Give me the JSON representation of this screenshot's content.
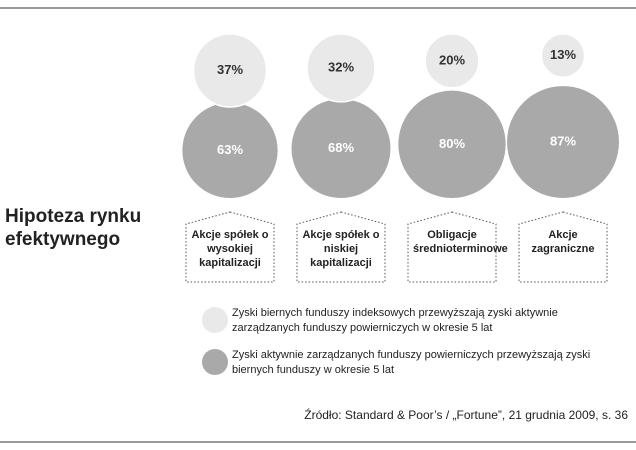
{
  "chart_data": {
    "type": "bubble",
    "title": "Hipoteza rynku efektywnego",
    "categories": [
      "Akcje spółek o wysokiej kapitalizacji",
      "Akcje spółek o niskiej kapitalizacji",
      "Obligacje średnioterminowe",
      "Akcje zagraniczne"
    ],
    "series": [
      {
        "name": "Zyski biernych funduszy indeksowych przewyższają zyski aktywnie zarządzanych funduszy powierniczych w okresie 5 lat",
        "color": "#e9e9e9",
        "values": [
          37,
          32,
          20,
          13
        ],
        "value_labels": [
          "37%",
          "32%",
          "20%",
          "13%"
        ]
      },
      {
        "name": "Zyski aktywnie zarządzanych funduszy powierniczych przewyższają zyski biernych funduszy w okresie 5 lat",
        "color": "#a9a9a9",
        "values": [
          63,
          68,
          80,
          87
        ],
        "value_labels": [
          "63%",
          "68%",
          "80%",
          "87%"
        ]
      }
    ],
    "source": "Źródło: Standard & Poor’s / „Fortune”, 21 grudnia 2009, s. 36"
  }
}
